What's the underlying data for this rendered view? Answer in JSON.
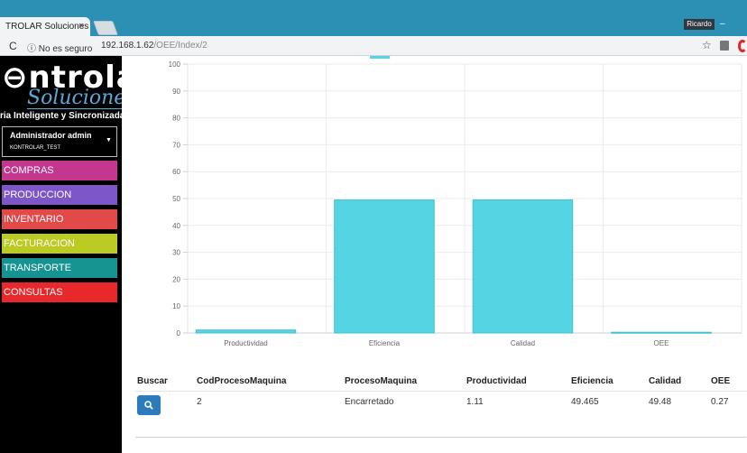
{
  "browser": {
    "tab_title": "TROLAR Soluciones",
    "tab_close": "×",
    "profile_name": "Ricardo",
    "minimize": "–",
    "reload": "C",
    "security_label": "ⓘ No es seguro",
    "url_host": "192.168.1.62",
    "url_path": "/OEE/Index/2",
    "bookmark_icon": "star-icon"
  },
  "sidebar": {
    "logo_main": "ntrolar",
    "logo_sub": "Soluciones",
    "tagline": "ria Inteligente y Sincronizada",
    "user_name": "Administrador admin",
    "user_company": "KONTROLAR_TEST",
    "user_caret": "▼",
    "menu": [
      {
        "label": "COMPRAS",
        "color": "#c4378e"
      },
      {
        "label": "PRODUCCION",
        "color": "#7d56c9"
      },
      {
        "label": "INVENTARIO",
        "color": "#e24a4a"
      },
      {
        "label": "FACTURACION",
        "color": "#bccb24"
      },
      {
        "label": "TRANSPORTE",
        "color": "#159491"
      },
      {
        "label": "CONSULTAS",
        "color": "#e8282a"
      }
    ]
  },
  "chart_data": {
    "type": "bar",
    "categories": [
      "Productividad",
      "Eficiencia",
      "Calidad",
      "OEE"
    ],
    "values": [
      1.11,
      49.465,
      49.48,
      0.27
    ],
    "ylim": [
      0,
      100
    ],
    "yticks": [
      0,
      10,
      20,
      30,
      40,
      50,
      60,
      70,
      80,
      90,
      100
    ],
    "grid": true,
    "bar_color": "#55d4e4",
    "bar_border": "#3fbfd1",
    "legend_placement": "top"
  },
  "table": {
    "headers": [
      "Buscar",
      "CodProcesoMaquina",
      "ProcesoMaquina",
      "Productividad",
      "Eficiencia",
      "Calidad",
      "OEE"
    ],
    "rows": [
      {
        "cod": "2",
        "proceso": "Encarretado",
        "productividad": "1.11",
        "eficiencia": "49.465",
        "calidad": "49.48",
        "oee": "0.27"
      }
    ],
    "search_icon": "search-icon",
    "button_color": "#2b7bbd"
  }
}
